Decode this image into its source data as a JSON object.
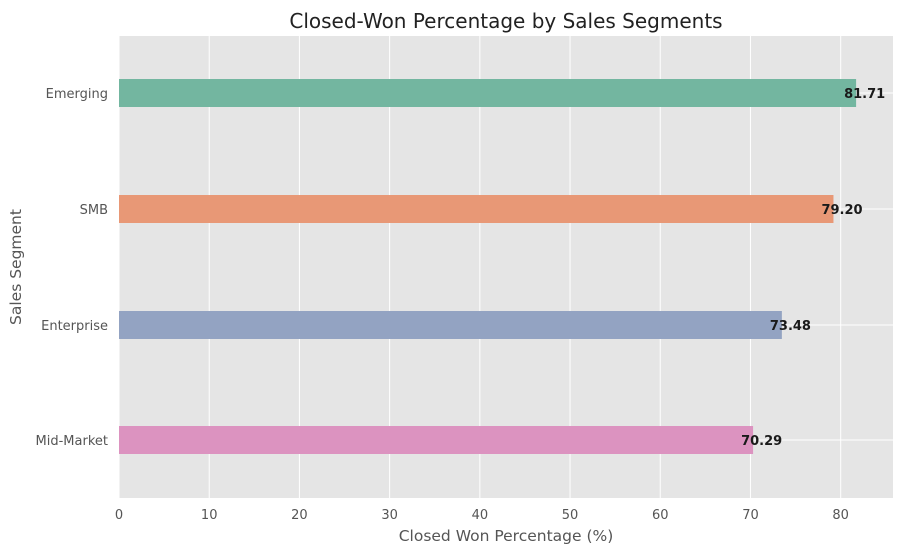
{
  "chart_data": {
    "type": "bar",
    "orientation": "horizontal",
    "title": "Closed-Won Percentage by Sales Segments",
    "xlabel": "Closed Won Percentage (%)",
    "ylabel": "Sales Segment",
    "xlim": [
      0,
      85.8
    ],
    "x_ticks": [
      "0",
      "10",
      "20",
      "30",
      "40",
      "50",
      "60",
      "70",
      "80"
    ],
    "grid": true,
    "categories": [
      "Emerging",
      "SMB",
      "Enterprise",
      "Mid-Market"
    ],
    "values": [
      81.71,
      79.2,
      73.48,
      70.29
    ],
    "value_labels": [
      "81.71",
      "79.20",
      "73.48",
      "70.29"
    ],
    "colors": [
      "#73b6a0",
      "#e89876",
      "#93a3c2",
      "#dc93c0"
    ],
    "background_color": "#e5e5e5",
    "grid_color": "#ffffff"
  }
}
